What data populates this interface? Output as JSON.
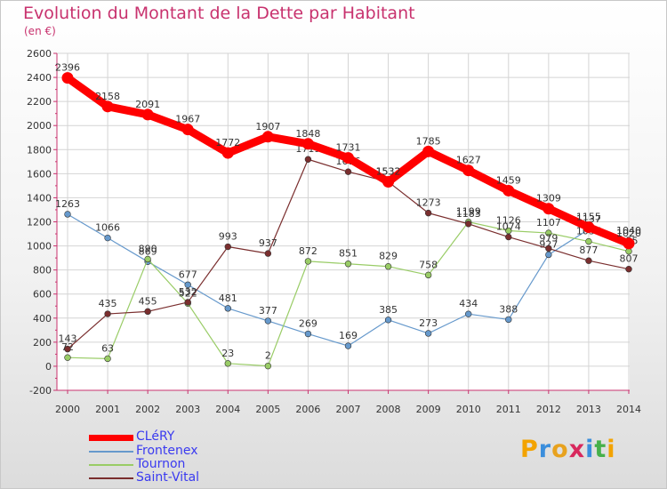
{
  "title": "Evolution du Montant de la Dette par Habitant",
  "subtitle": "(en €)",
  "logo": {
    "text": "Proxiti",
    "colors": [
      "#f3a300",
      "#3b8edc",
      "#e8a21e",
      "#d8285d",
      "#3b8edc",
      "#46b04b",
      "#f3a300"
    ]
  },
  "chart_data": {
    "type": "line",
    "x": [
      "2000",
      "2001",
      "2002",
      "2003",
      "2004",
      "2005",
      "2006",
      "2007",
      "2008",
      "2009",
      "2010",
      "2011",
      "2012",
      "2013",
      "2014"
    ],
    "yticks": [
      "-200",
      "0",
      "200",
      "400",
      "600",
      "800",
      "1000",
      "1200",
      "1400",
      "1600",
      "1800",
      "2000",
      "2200",
      "2400",
      "2600"
    ],
    "ylim": [
      -200,
      2600
    ],
    "grid": true,
    "legend_position": "bottom-left",
    "series": [
      {
        "name": "CLéRY",
        "color": "#ff0000",
        "values": [
          2396,
          2158,
          2091,
          1967,
          1772,
          1907,
          1848,
          1731,
          1532,
          1785,
          1627,
          1459,
          1309,
          1155,
          1020
        ]
      },
      {
        "name": "Frontenex",
        "color": "#6699cc",
        "values": [
          1263,
          1066,
          869,
          677,
          481,
          377,
          269,
          169,
          385,
          273,
          434,
          388,
          927,
          1137,
          1040
        ]
      },
      {
        "name": "Tournon",
        "color": "#99cc66",
        "values": [
          72,
          63,
          890,
          522,
          23,
          2,
          872,
          851,
          829,
          758,
          1199,
          1126,
          1107,
          1037,
          955
        ]
      },
      {
        "name": "Saint-Vital",
        "color": "#7a2e2e",
        "values": [
          143,
          435,
          455,
          532,
          993,
          937,
          1719,
          1616,
          1533,
          1273,
          1183,
          1074,
          979,
          877,
          807
        ]
      }
    ]
  }
}
